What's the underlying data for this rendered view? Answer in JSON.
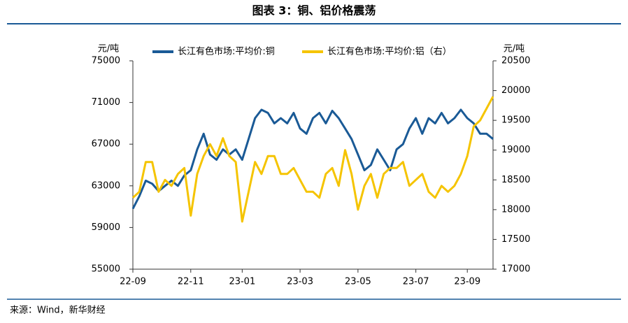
{
  "chart_data": {
    "type": "line",
    "title": "图表 3：铜、铝价格震荡",
    "y_label": "元/吨",
    "y2_label": "元/吨",
    "source": "来源：Wind，新华财经",
    "categories": [
      "22-09",
      null,
      null,
      null,
      null,
      null,
      null,
      null,
      null,
      "22-11",
      null,
      null,
      null,
      null,
      null,
      null,
      null,
      "23-01",
      null,
      null,
      null,
      null,
      null,
      null,
      null,
      null,
      "23-03",
      null,
      null,
      null,
      null,
      null,
      null,
      null,
      null,
      "23-05",
      null,
      null,
      null,
      null,
      null,
      null,
      null,
      null,
      "23-07",
      null,
      null,
      null,
      null,
      null,
      null,
      null,
      "23-09",
      null,
      null,
      null,
      null
    ],
    "series": [
      {
        "name": "长江有色市场:平均价:铜",
        "color": "#1a5a96",
        "axis": "y",
        "values": [
          60800,
          62000,
          63500,
          63200,
          62500,
          63000,
          63500,
          63000,
          64000,
          64500,
          66500,
          68000,
          66000,
          65500,
          66500,
          66000,
          66500,
          65500,
          67500,
          69500,
          70300,
          70000,
          69000,
          69500,
          69000,
          70000,
          68500,
          68000,
          69500,
          70000,
          69000,
          70200,
          69500,
          68500,
          67500,
          66000,
          64500,
          65000,
          66500,
          65500,
          64500,
          66500,
          67000,
          68500,
          69500,
          68000,
          69500,
          69000,
          70000,
          69000,
          69500,
          70300,
          69500,
          69000,
          68000,
          68000,
          67500
        ]
      },
      {
        "name": "长江有色市场:平均价:铝（右）",
        "color": "#f5c400",
        "axis": "y2",
        "values": [
          18200,
          18300,
          18800,
          18800,
          18300,
          18500,
          18400,
          18600,
          18700,
          17900,
          18600,
          18900,
          19100,
          18900,
          19200,
          18900,
          18800,
          17800,
          18300,
          18800,
          18600,
          18900,
          18900,
          18600,
          18600,
          18700,
          18500,
          18300,
          18300,
          18200,
          18600,
          18700,
          18400,
          19000,
          18600,
          18000,
          18400,
          18600,
          18200,
          18600,
          18700,
          18700,
          18800,
          18400,
          18500,
          18600,
          18300,
          18200,
          18400,
          18300,
          18400,
          18600,
          18900,
          19400,
          19500,
          19700,
          19900
        ]
      }
    ],
    "ylim": [
      55000,
      75000
    ],
    "yticks": [
      55000,
      59000,
      63000,
      67000,
      71000,
      75000
    ],
    "y2lim": [
      17000,
      20500
    ],
    "y2ticks": [
      17000,
      17500,
      18000,
      18500,
      19000,
      19500,
      20000,
      20500
    ],
    "legend": "top"
  }
}
